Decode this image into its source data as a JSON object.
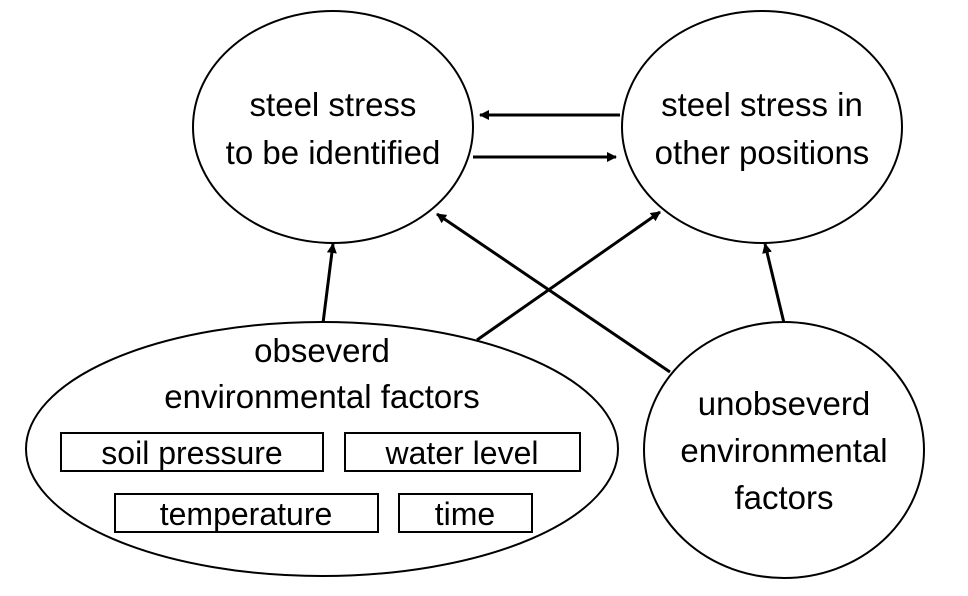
{
  "nodes": {
    "steel_stress_identified": {
      "line1": "steel stress",
      "line2": "to be identified"
    },
    "steel_stress_other": {
      "line1": "steel stress in",
      "line2": "other positions"
    },
    "observed_factors": {
      "line1": "obseverd",
      "line2": "environmental factors",
      "boxes": [
        "soil pressure",
        "water level",
        "temperature",
        "time"
      ]
    },
    "unobserved_factors": {
      "line1": "unobseverd",
      "line2": "environmental",
      "line3": "factors"
    }
  },
  "edges": [
    {
      "from": "steel_stress_other",
      "to": "steel_stress_identified"
    },
    {
      "from": "steel_stress_identified",
      "to": "steel_stress_other"
    },
    {
      "from": "observed_factors",
      "to": "steel_stress_identified"
    },
    {
      "from": "observed_factors",
      "to": "steel_stress_other"
    },
    {
      "from": "unobserved_factors",
      "to": "steel_stress_identified"
    },
    {
      "from": "unobserved_factors",
      "to": "steel_stress_other"
    }
  ]
}
